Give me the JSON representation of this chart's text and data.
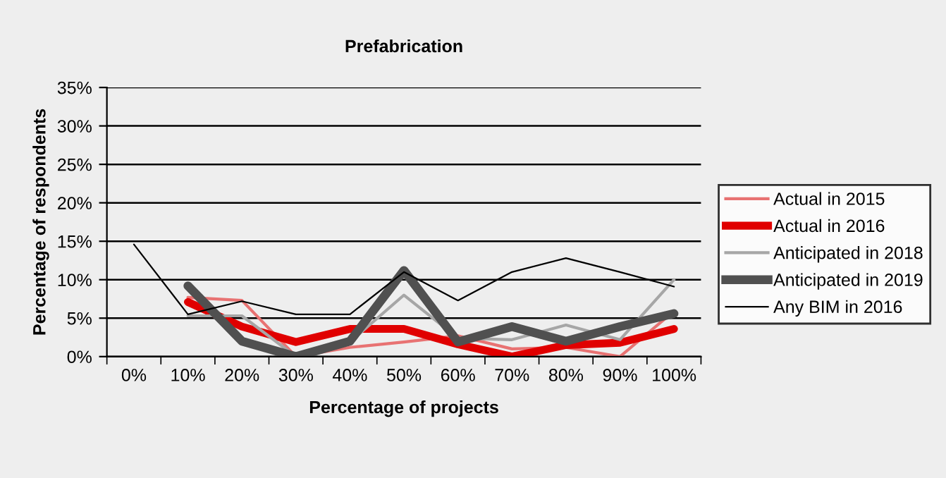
{
  "chart_data": {
    "type": "line",
    "title": "Prefabrication",
    "xlabel": "Percentage of projects",
    "ylabel": "Percentage of respondents",
    "categories": [
      "0%",
      "10%",
      "20%",
      "30%",
      "40%",
      "50%",
      "60%",
      "70%",
      "80%",
      "90%",
      "100%"
    ],
    "series": [
      {
        "name": "Actual in 2015",
        "color": "#e87272",
        "values": [
          null,
          7.7,
          7.3,
          0,
          1.2,
          1.9,
          2.7,
          1.0,
          1.2,
          0,
          5.9
        ]
      },
      {
        "name": "Actual in 2016",
        "color": "#e00000",
        "values": [
          null,
          7.1,
          3.9,
          1.9,
          3.6,
          3.6,
          1.6,
          0,
          1.5,
          1.8,
          3.6
        ]
      },
      {
        "name": "Anticipated in 2018",
        "color": "#a6a6a6",
        "values": [
          null,
          5.3,
          5.3,
          0,
          1.9,
          8.0,
          2.4,
          2.2,
          4.1,
          2.2,
          10.0
        ]
      },
      {
        "name": "Anticipated in 2019",
        "color": "#505050",
        "values": [
          null,
          9.2,
          2.0,
          0,
          2.0,
          11.2,
          1.9,
          3.9,
          2.0,
          3.9,
          5.6
        ]
      },
      {
        "name": "Any BIM in 2016",
        "color": "#000000",
        "values": [
          14.6,
          5.5,
          7.2,
          5.5,
          5.5,
          11.0,
          7.3,
          11.0,
          12.8,
          11.0,
          9.1
        ]
      }
    ],
    "ylim": [
      0,
      35
    ],
    "yticks": [
      {
        "value": 0,
        "label": "0%"
      },
      {
        "value": 5,
        "label": "5%"
      },
      {
        "value": 10,
        "label": "10%"
      },
      {
        "value": 15,
        "label": "15%"
      },
      {
        "value": 20,
        "label": "20%"
      },
      {
        "value": 25,
        "label": "25%"
      },
      {
        "value": 30,
        "label": "30%"
      },
      {
        "value": 35,
        "label": "35%"
      }
    ],
    "grid": "y",
    "legend": "right",
    "marker": "none",
    "line_style": "solid"
  }
}
